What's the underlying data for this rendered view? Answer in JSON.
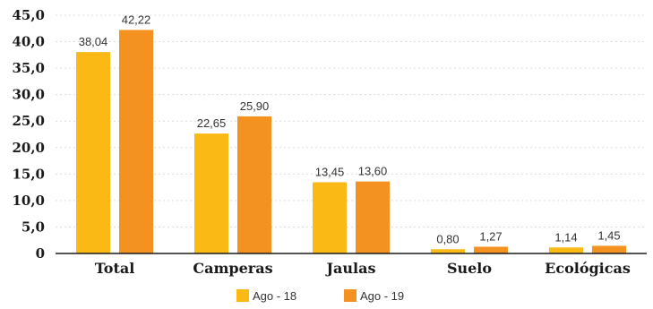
{
  "chart_data": {
    "type": "bar",
    "categories": [
      "Total",
      "Camperas",
      "Jaulas",
      "Suelo",
      "Ecológicas"
    ],
    "series": [
      {
        "name": "Ago - 18",
        "color": "#FBB915",
        "values": [
          38.04,
          22.65,
          13.45,
          0.8,
          1.14
        ],
        "labels": [
          "38,04",
          "22,65",
          "13,45",
          "0,80",
          "1,14"
        ]
      },
      {
        "name": "Ago - 19",
        "color": "#F39220",
        "values": [
          42.22,
          25.9,
          13.6,
          1.27,
          1.45
        ],
        "labels": [
          "42,22",
          "25,90",
          "13,60",
          "1,27",
          "1,45"
        ]
      }
    ],
    "ylim": [
      0,
      45
    ],
    "yticks": [
      0,
      5,
      10,
      15,
      20,
      25,
      30,
      35,
      40,
      45
    ],
    "ytick_labels": [
      "0",
      "5,0",
      "10,0",
      "15,0",
      "20,0",
      "25,0",
      "30,0",
      "35,0",
      "40,0",
      "45,0"
    ],
    "grid": true,
    "legend": "bottom-center",
    "title": "",
    "xlabel": "",
    "ylabel": ""
  }
}
